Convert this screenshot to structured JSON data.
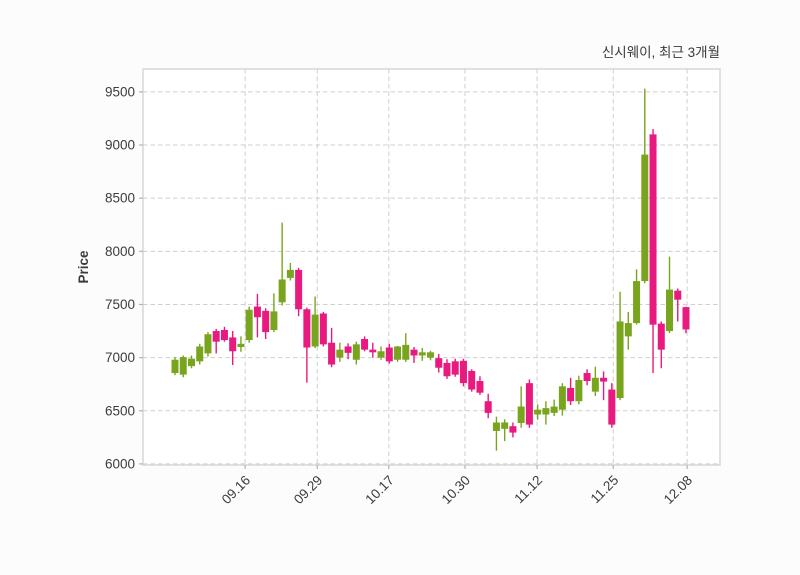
{
  "chart_data": {
    "type": "candlestick",
    "title": "신시웨이, 최근 3개월",
    "ylabel": "Price",
    "ylim": [
      5990,
      9715
    ],
    "grid": "dashed-both",
    "up_color": "#79A51E",
    "down_color": "#E8197F",
    "grid_color": "#cfcfcf",
    "border_color": "#d4d4d4",
    "tick_color": "#b4b4b4",
    "text_color": "#3c3c3c",
    "y_ticks": [
      6000,
      6500,
      7000,
      7500,
      8000,
      8500,
      9000,
      9500
    ],
    "x_ticks": [
      {
        "label": "09.16",
        "f": 0.177
      },
      {
        "label": "09.29",
        "f": 0.302
      },
      {
        "label": "10.17",
        "f": 0.426
      },
      {
        "label": "10.30",
        "f": 0.558
      },
      {
        "label": "11.12",
        "f": 0.683
      },
      {
        "label": "11.25",
        "f": 0.815
      },
      {
        "label": "12.08",
        "f": 0.943
      }
    ],
    "candles": [
      [
        6855,
        7005,
        6835,
        6980
      ],
      [
        6840,
        7020,
        6815,
        7005
      ],
      [
        6920,
        7020,
        6900,
        6990
      ],
      [
        6965,
        7130,
        6935,
        7105
      ],
      [
        7040,
        7240,
        7010,
        7220
      ],
      [
        7250,
        7270,
        7040,
        7150
      ],
      [
        7260,
        7290,
        7150,
        7165
      ],
      [
        7190,
        7250,
        6930,
        7060
      ],
      [
        7100,
        7200,
        7055,
        7130
      ],
      [
        7165,
        7480,
        7140,
        7450
      ],
      [
        7480,
        7600,
        7190,
        7380
      ],
      [
        7440,
        7465,
        7175,
        7240
      ],
      [
        7260,
        7605,
        7240,
        7435
      ],
      [
        7520,
        8270,
        7490,
        7735
      ],
      [
        7750,
        7890,
        7725,
        7825
      ],
      [
        7825,
        7845,
        7390,
        7455
      ],
      [
        7455,
        7470,
        6765,
        7095
      ],
      [
        7105,
        7575,
        7090,
        7405
      ],
      [
        7415,
        7430,
        7105,
        7125
      ],
      [
        7140,
        7280,
        6910,
        6935
      ],
      [
        7000,
        7140,
        6960,
        7075
      ],
      [
        7105,
        7135,
        6985,
        7045
      ],
      [
        6980,
        7150,
        6935,
        7125
      ],
      [
        7175,
        7200,
        7060,
        7075
      ],
      [
        7075,
        7140,
        7000,
        7050
      ],
      [
        7000,
        7105,
        6980,
        7060
      ],
      [
        7095,
        7130,
        6945,
        6965
      ],
      [
        6980,
        7110,
        6960,
        7105
      ],
      [
        6980,
        7230,
        6960,
        7120
      ],
      [
        7075,
        7100,
        6950,
        7020
      ],
      [
        7020,
        7090,
        6970,
        7050
      ],
      [
        7000,
        7065,
        6975,
        7050
      ],
      [
        6995,
        7035,
        6860,
        6905
      ],
      [
        6950,
        6985,
        6800,
        6825
      ],
      [
        6965,
        6990,
        6820,
        6840
      ],
      [
        6970,
        6990,
        6730,
        6760
      ],
      [
        6875,
        6890,
        6680,
        6700
      ],
      [
        6780,
        6825,
        6650,
        6670
      ],
      [
        6590,
        6660,
        6430,
        6480
      ],
      [
        6310,
        6445,
        6125,
        6390
      ],
      [
        6330,
        6420,
        6215,
        6390
      ],
      [
        6355,
        6390,
        6250,
        6295
      ],
      [
        6385,
        6730,
        6340,
        6540
      ],
      [
        6760,
        6795,
        6340,
        6370
      ],
      [
        6465,
        6560,
        6415,
        6510
      ],
      [
        6465,
        6590,
        6370,
        6525
      ],
      [
        6480,
        6605,
        6450,
        6540
      ],
      [
        6510,
        6760,
        6455,
        6730
      ],
      [
        6715,
        6810,
        6555,
        6590
      ],
      [
        6590,
        6830,
        6560,
        6790
      ],
      [
        6855,
        6890,
        6740,
        6780
      ],
      [
        6680,
        6915,
        6640,
        6810
      ],
      [
        6810,
        6870,
        6600,
        6775
      ],
      [
        6700,
        6760,
        6340,
        6370
      ],
      [
        6620,
        7620,
        6600,
        7340
      ],
      [
        7200,
        7430,
        7075,
        7325
      ],
      [
        7325,
        7830,
        7310,
        7720
      ],
      [
        7720,
        9530,
        7700,
        8910
      ],
      [
        9100,
        9150,
        6855,
        7310
      ],
      [
        7320,
        7340,
        6900,
        7075
      ],
      [
        7250,
        7950,
        7230,
        7640
      ],
      [
        7630,
        7650,
        7340,
        7545
      ],
      [
        7475,
        7480,
        7230,
        7265
      ]
    ]
  }
}
